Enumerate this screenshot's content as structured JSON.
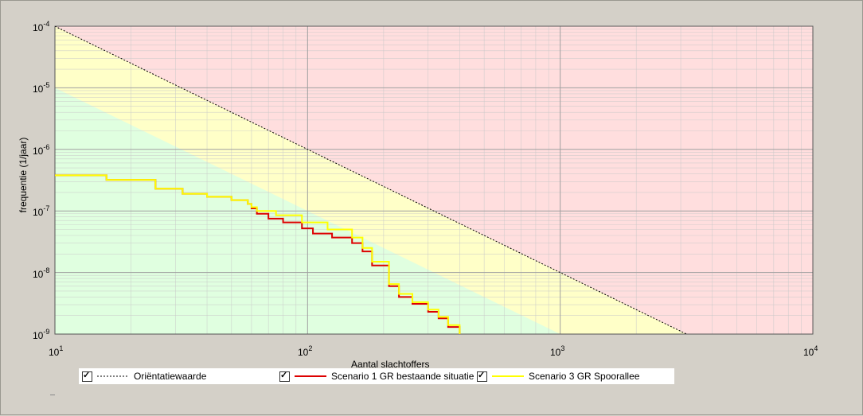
{
  "chart_data": {
    "type": "line",
    "xscale": "log",
    "yscale": "log",
    "xlim": [
      10,
      10000
    ],
    "ylim": [
      1e-09,
      0.0001
    ],
    "xlabel": "Aantal slachtoffers",
    "ylabel": "frequentie (1/jaar)",
    "x_ticks": [
      {
        "base": "10",
        "exp": "1"
      },
      {
        "base": "10",
        "exp": "2"
      },
      {
        "base": "10",
        "exp": "3"
      },
      {
        "base": "10",
        "exp": "4"
      }
    ],
    "y_ticks": [
      {
        "base": "10",
        "exp": "-4"
      },
      {
        "base": "10",
        "exp": "-5"
      },
      {
        "base": "10",
        "exp": "-6"
      },
      {
        "base": "10",
        "exp": "-7"
      },
      {
        "base": "10",
        "exp": "-8"
      },
      {
        "base": "10",
        "exp": "-9"
      }
    ],
    "grid": true,
    "regions": {
      "red": "#ffdede",
      "yellow": "#ffffc8",
      "green": "#e0ffe0"
    },
    "series": [
      {
        "name": "Oriëntatiewaarde",
        "color": "#000000",
        "style": "dotted",
        "points": [
          [
            10,
            0.0001
          ],
          [
            3160,
            1e-09
          ]
        ]
      },
      {
        "name": "Scenario 1 GR bestaande situatie",
        "color": "#dd0000",
        "style": "solid",
        "points": [
          [
            10,
            3.8e-07
          ],
          [
            16,
            3.2e-07
          ],
          [
            25,
            2.3e-07
          ],
          [
            32,
            1.9e-07
          ],
          [
            40,
            1.7e-07
          ],
          [
            50,
            1.5e-07
          ],
          [
            58,
            1.3e-07
          ],
          [
            60,
            1.1e-07
          ],
          [
            63,
            9e-08
          ],
          [
            70,
            7.5e-08
          ],
          [
            80,
            6.5e-08
          ],
          [
            95,
            5.2e-08
          ],
          [
            105,
            4.3e-08
          ],
          [
            125,
            3.7e-08
          ],
          [
            150,
            3e-08
          ],
          [
            165,
            2.2e-08
          ],
          [
            180,
            1.3e-08
          ],
          [
            210,
            6e-09
          ],
          [
            230,
            4e-09
          ],
          [
            260,
            3.1e-09
          ],
          [
            300,
            2.3e-09
          ],
          [
            330,
            1.8e-09
          ],
          [
            360,
            1.3e-09
          ],
          [
            400,
            1e-09
          ]
        ]
      },
      {
        "name": "Scenario 3 GR Spoorallee",
        "color": "#ffff00",
        "style": "solid",
        "points": [
          [
            10,
            3.8e-07
          ],
          [
            16,
            3.2e-07
          ],
          [
            25,
            2.3e-07
          ],
          [
            32,
            1.9e-07
          ],
          [
            40,
            1.7e-07
          ],
          [
            50,
            1.5e-07
          ],
          [
            58,
            1.3e-07
          ],
          [
            60,
            1.15e-07
          ],
          [
            63,
            1e-07
          ],
          [
            75,
            8.5e-08
          ],
          [
            95,
            6.5e-08
          ],
          [
            120,
            5e-08
          ],
          [
            150,
            3.7e-08
          ],
          [
            165,
            2.5e-08
          ],
          [
            180,
            1.5e-08
          ],
          [
            210,
            6.5e-09
          ],
          [
            230,
            4.5e-09
          ],
          [
            260,
            3.3e-09
          ],
          [
            300,
            2.5e-09
          ],
          [
            330,
            1.9e-09
          ],
          [
            360,
            1.4e-09
          ],
          [
            400,
            1e-09
          ]
        ]
      }
    ]
  },
  "legend": {
    "items": [
      {
        "label": "Oriëntatiewaarde"
      },
      {
        "label": "Scenario 1 GR bestaande situatie"
      },
      {
        "label": "Scenario 3 GR Spoorallee"
      }
    ]
  }
}
